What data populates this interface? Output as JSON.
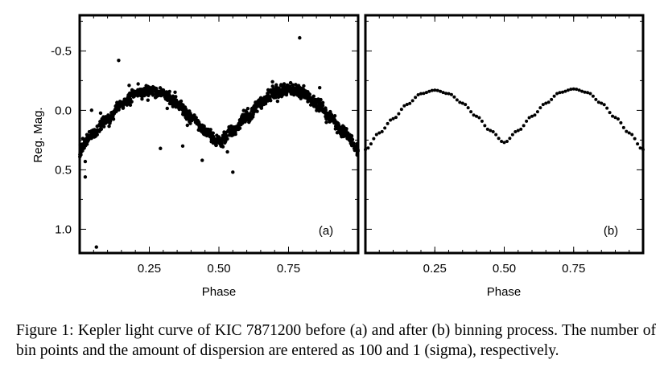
{
  "caption": "Figure 1: Kepler light curve of KIC 7871200 before (a) and after (b) binning process. The number of bin points and the amount of dispersion are entered as 100 and 1 (sigma), respectively.",
  "chart_data": [
    {
      "type": "scatter",
      "panel_label": "(a)",
      "xlabel": "Phase",
      "ylabel": "Reg. Mag.",
      "xlim": [
        0.0,
        1.0
      ],
      "ylim": [
        1.2,
        -0.8
      ],
      "y_inverted": true,
      "x_ticks": [
        "0.25",
        "0.50",
        "0.75"
      ],
      "x_tick_values": [
        0.25,
        0.5,
        0.75
      ],
      "y_ticks": [
        "-0.5",
        "0.0",
        "0.5",
        "1.0"
      ],
      "y_tick_values": [
        -0.5,
        0.0,
        0.5,
        1.0
      ],
      "grid": false,
      "curve_model": {
        "phase": [
          0.0,
          0.05,
          0.1,
          0.15,
          0.2,
          0.25,
          0.3,
          0.35,
          0.4,
          0.45,
          0.5,
          0.55,
          0.6,
          0.65,
          0.7,
          0.75,
          0.8,
          0.85,
          0.9,
          0.95,
          1.0
        ],
        "mag": [
          0.33,
          0.19,
          0.07,
          -0.05,
          -0.14,
          -0.17,
          -0.14,
          -0.06,
          0.05,
          0.17,
          0.27,
          0.17,
          0.05,
          -0.06,
          -0.15,
          -0.18,
          -0.15,
          -0.06,
          0.06,
          0.19,
          0.33
        ]
      },
      "outliers": [
        [
          0.14,
          -0.42
        ],
        [
          0.79,
          -0.61
        ],
        [
          0.06,
          1.15
        ],
        [
          0.02,
          0.56
        ],
        [
          0.29,
          0.32
        ],
        [
          0.37,
          0.3
        ],
        [
          0.44,
          0.42
        ],
        [
          0.55,
          0.52
        ],
        [
          0.02,
          0.43
        ]
      ]
    },
    {
      "type": "scatter",
      "panel_label": "(b)",
      "xlabel": "Phase",
      "xlim": [
        0.0,
        1.0
      ],
      "ylim": [
        1.2,
        -0.8
      ],
      "y_inverted": true,
      "x_ticks": [
        "0.25",
        "0.50",
        "0.75"
      ],
      "x_tick_values": [
        0.25,
        0.5,
        0.75
      ],
      "grid": false,
      "n_bins": 100,
      "phase": [
        0.0,
        0.05,
        0.1,
        0.15,
        0.2,
        0.25,
        0.3,
        0.35,
        0.4,
        0.45,
        0.5,
        0.55,
        0.6,
        0.65,
        0.7,
        0.75,
        0.8,
        0.85,
        0.9,
        0.95,
        1.0
      ],
      "mag": [
        0.33,
        0.19,
        0.07,
        -0.05,
        -0.14,
        -0.17,
        -0.14,
        -0.06,
        0.05,
        0.17,
        0.27,
        0.17,
        0.05,
        -0.06,
        -0.15,
        -0.18,
        -0.15,
        -0.06,
        0.06,
        0.19,
        0.33
      ]
    }
  ]
}
